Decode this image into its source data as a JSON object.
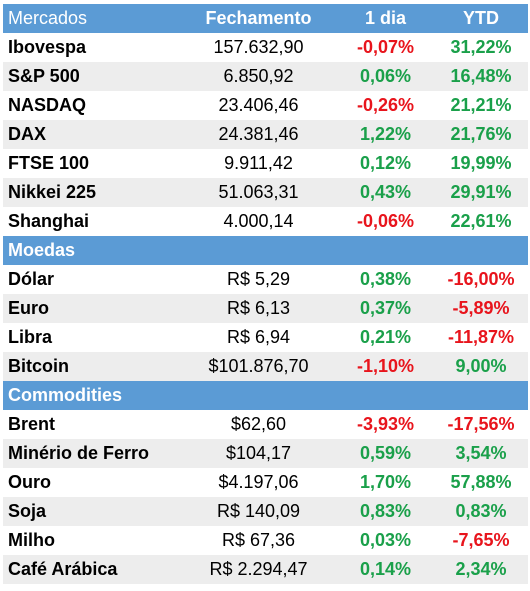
{
  "colors": {
    "header_bg": "#5b9bd5",
    "alt_row": "#ededed",
    "positive": "#1aa04a",
    "negative": "#e8141c"
  },
  "header": {
    "name": "Mercados",
    "close": "Fechamento",
    "day": "1 dia",
    "ytd": "YTD"
  },
  "indices": [
    {
      "name": "Ibovespa",
      "close": "157.632,90",
      "day": "-0,07%",
      "ytd": "31,22%"
    },
    {
      "name": "S&P 500",
      "close": "6.850,92",
      "day": "0,06%",
      "ytd": "16,48%"
    },
    {
      "name": "NASDAQ",
      "close": "23.406,46",
      "day": "-0,26%",
      "ytd": "21,21%"
    },
    {
      "name": "DAX",
      "close": "24.381,46",
      "day": "1,22%",
      "ytd": "21,76%"
    },
    {
      "name": "FTSE 100",
      "close": "9.911,42",
      "day": "0,12%",
      "ytd": "19,99%"
    },
    {
      "name": "Nikkei 225",
      "close": "51.063,31",
      "day": "0,43%",
      "ytd": "29,91%"
    },
    {
      "name": "Shanghai",
      "close": "4.000,14",
      "day": "-0,06%",
      "ytd": "22,61%"
    }
  ],
  "currencies_title": "Moedas",
  "currencies": [
    {
      "name": "Dólar",
      "close": "R$ 5,29",
      "day": "0,38%",
      "ytd": "-16,00%"
    },
    {
      "name": "Euro",
      "close": "R$ 6,13",
      "day": "0,37%",
      "ytd": "-5,89%"
    },
    {
      "name": "Libra",
      "close": "R$ 6,94",
      "day": "0,21%",
      "ytd": "-11,87%"
    },
    {
      "name": "Bitcoin",
      "close": "$101.876,70",
      "day": "-1,10%",
      "ytd": "9,00%"
    }
  ],
  "commodities_title": "Commodities",
  "commodities": [
    {
      "name": "Brent",
      "close": "$62,60",
      "day": "-3,93%",
      "ytd": "-17,56%"
    },
    {
      "name": "Minério de Ferro",
      "close": "$104,17",
      "day": "0,59%",
      "ytd": "3,54%"
    },
    {
      "name": "Ouro",
      "close": "$4.197,06",
      "day": "1,70%",
      "ytd": "57,88%"
    },
    {
      "name": "Soja",
      "close": "R$ 140,09",
      "day": "0,83%",
      "ytd": "0,83%"
    },
    {
      "name": "Milho",
      "close": "R$ 67,36",
      "day": "0,03%",
      "ytd": "-7,65%"
    },
    {
      "name": "Café Arábica",
      "close": "R$ 2.294,47",
      "day": "0,14%",
      "ytd": "2,34%"
    }
  ]
}
